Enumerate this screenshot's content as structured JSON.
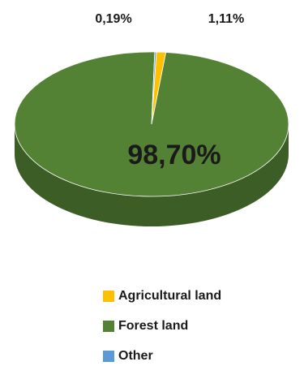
{
  "chart_data": {
    "type": "pie",
    "title": "",
    "three_d": true,
    "categories": [
      "Agricultural land",
      "Forest land",
      "Other"
    ],
    "values": [
      1.11,
      98.7,
      0.19
    ],
    "data_labels": [
      "1,11%",
      "98,70%",
      "0,19%"
    ],
    "colors": [
      "#FFC000",
      "#548235",
      "#5B9BD5"
    ],
    "legend_position": "bottom",
    "legend": [
      {
        "label": "Agricultural land",
        "color": "#FFC000"
      },
      {
        "label": "Forest land",
        "color": "#548235"
      },
      {
        "label": "Other",
        "color": "#5B9BD5"
      }
    ]
  }
}
